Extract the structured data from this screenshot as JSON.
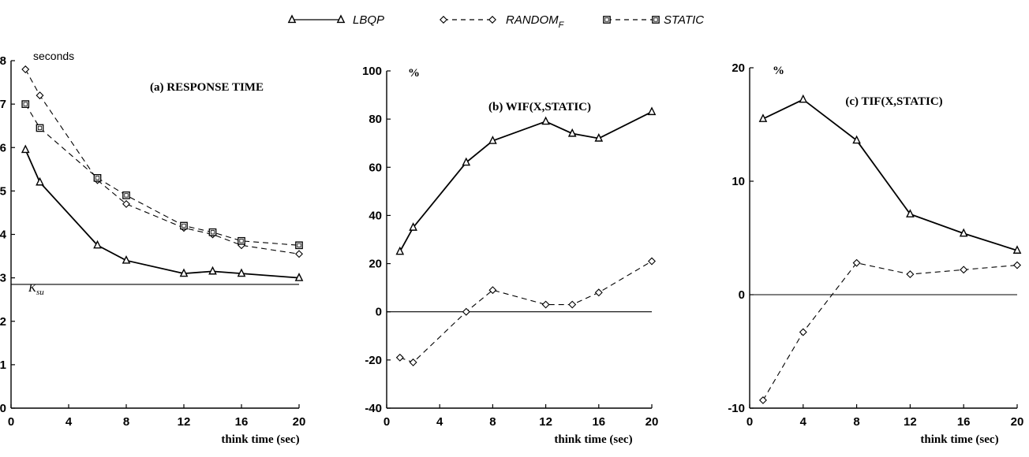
{
  "legend": {
    "items": [
      {
        "label": "LBQP",
        "sub": "",
        "marker": "triangle",
        "dash": "solid"
      },
      {
        "label": "RANDOM",
        "sub": "F",
        "marker": "diamond",
        "dash": "dashed"
      },
      {
        "label": "STATIC",
        "sub": "",
        "marker": "square",
        "dash": "dashed"
      }
    ],
    "placement": "top-center"
  },
  "chart_data": [
    {
      "type": "line",
      "title": "(a) RESPONSE TIME",
      "unit_label": "seconds",
      "xlabel": "think time (sec)",
      "ylabel": "",
      "xlim": [
        0,
        20
      ],
      "ylim": [
        0,
        8
      ],
      "xticks": [
        0,
        4,
        8,
        12,
        16,
        20
      ],
      "yticks": [
        0,
        1,
        2,
        3,
        4,
        5,
        6,
        7,
        8
      ],
      "grid": false,
      "reference_line": {
        "y": 2.85,
        "label": "K",
        "label_sub": "su"
      },
      "series": [
        {
          "name": "LBQP",
          "marker": "triangle",
          "dash": "solid",
          "x": [
            1,
            2,
            6,
            8,
            12,
            14,
            16,
            20
          ],
          "y": [
            5.95,
            5.2,
            3.75,
            3.4,
            3.1,
            3.15,
            3.1,
            3.0
          ]
        },
        {
          "name": "RANDOM_F",
          "marker": "diamond",
          "dash": "dashed",
          "x": [
            1,
            2,
            6,
            8,
            12,
            14,
            16,
            20
          ],
          "y": [
            7.8,
            7.2,
            5.25,
            4.7,
            4.15,
            4.0,
            3.75,
            3.55
          ]
        },
        {
          "name": "STATIC",
          "marker": "square",
          "dash": "dashed",
          "x": [
            1,
            2,
            6,
            8,
            12,
            14,
            16,
            20
          ],
          "y": [
            7.0,
            6.45,
            5.3,
            4.9,
            4.2,
            4.05,
            3.85,
            3.75
          ]
        }
      ]
    },
    {
      "type": "line",
      "title": "(b) WIF(X,STATIC)",
      "unit_label": "%",
      "xlabel": "think time (sec)",
      "ylabel": "",
      "xlim": [
        0,
        20
      ],
      "ylim": [
        -40,
        100
      ],
      "xticks": [
        0,
        4,
        8,
        12,
        16,
        20
      ],
      "yticks": [
        -40,
        -20,
        0,
        20,
        40,
        60,
        80,
        100
      ],
      "grid": false,
      "reference_line": {
        "y": 0,
        "label": "",
        "label_sub": ""
      },
      "series": [
        {
          "name": "LBQP",
          "marker": "triangle",
          "dash": "solid",
          "x": [
            1,
            2,
            6,
            8,
            12,
            14,
            16,
            20
          ],
          "y": [
            25,
            35,
            62,
            71,
            79,
            74,
            72,
            83
          ]
        },
        {
          "name": "RANDOM_F",
          "marker": "diamond",
          "dash": "dashed",
          "x": [
            1,
            2,
            6,
            8,
            12,
            14,
            16,
            20
          ],
          "y": [
            -19,
            -21,
            0,
            9,
            3,
            3,
            8,
            21
          ]
        }
      ]
    },
    {
      "type": "line",
      "title": "(c) TIF(X,STATIC)",
      "unit_label": "%",
      "xlabel": "think time (sec)",
      "ylabel": "",
      "xlim": [
        0,
        20
      ],
      "ylim": [
        -10,
        20
      ],
      "xticks": [
        0,
        4,
        8,
        12,
        16,
        20
      ],
      "yticks": [
        -10,
        0,
        10,
        20
      ],
      "grid": false,
      "reference_line": {
        "y": 0,
        "label": "",
        "label_sub": ""
      },
      "series": [
        {
          "name": "LBQP",
          "marker": "triangle",
          "dash": "solid",
          "x": [
            1,
            4,
            8,
            12,
            16,
            20
          ],
          "y": [
            15.5,
            17.2,
            13.6,
            7.1,
            5.4,
            3.9
          ]
        },
        {
          "name": "RANDOM_F",
          "marker": "diamond",
          "dash": "dashed",
          "x": [
            1,
            4,
            8,
            12,
            16,
            20
          ],
          "y": [
            -9.3,
            -3.3,
            2.8,
            1.8,
            2.2,
            2.6
          ]
        }
      ]
    }
  ]
}
